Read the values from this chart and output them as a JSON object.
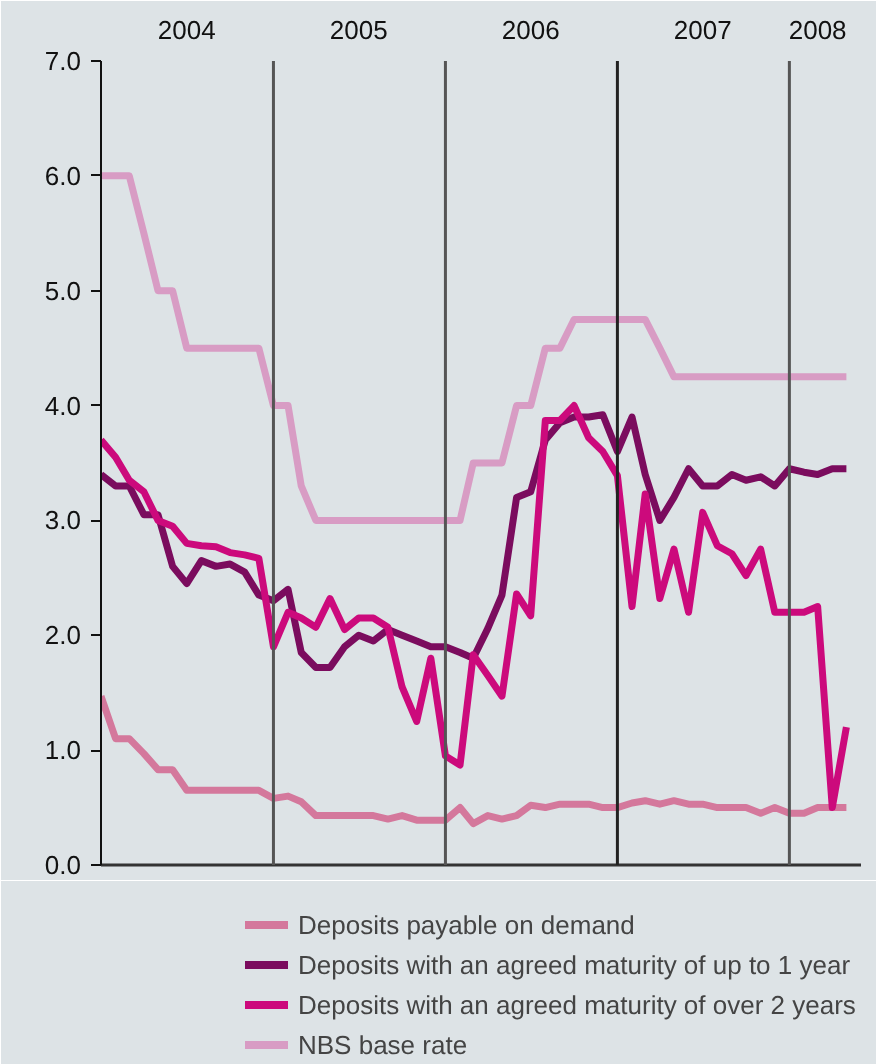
{
  "chart_data": {
    "type": "line",
    "x": [
      "2004-01",
      "2004-02",
      "2004-03",
      "2004-04",
      "2004-05",
      "2004-06",
      "2004-07",
      "2004-08",
      "2004-09",
      "2004-10",
      "2004-11",
      "2004-12",
      "2005-01",
      "2005-02",
      "2005-03",
      "2005-04",
      "2005-05",
      "2005-06",
      "2005-07",
      "2005-08",
      "2005-09",
      "2005-10",
      "2005-11",
      "2005-12",
      "2006-01",
      "2006-02",
      "2006-03",
      "2006-04",
      "2006-05",
      "2006-06",
      "2006-07",
      "2006-08",
      "2006-09",
      "2006-10",
      "2006-11",
      "2006-12",
      "2007-01",
      "2007-02",
      "2007-03",
      "2007-04",
      "2007-05",
      "2007-06",
      "2007-07",
      "2007-08",
      "2007-09",
      "2007-10",
      "2007-11",
      "2007-12",
      "2008-01",
      "2008-02",
      "2008-03",
      "2008-04",
      "2008-05"
    ],
    "series": [
      {
        "name": "Deposits payable on demand",
        "color": "#d4789c",
        "values": [
          1.47,
          1.1,
          1.1,
          0.97,
          0.83,
          0.83,
          0.65,
          0.65,
          0.65,
          0.65,
          0.65,
          0.65,
          0.58,
          0.6,
          0.55,
          0.43,
          0.43,
          0.43,
          0.43,
          0.43,
          0.4,
          0.43,
          0.39,
          0.39,
          0.39,
          0.5,
          0.36,
          0.43,
          0.4,
          0.43,
          0.52,
          0.5,
          0.53,
          0.53,
          0.53,
          0.5,
          0.5,
          0.54,
          0.56,
          0.53,
          0.56,
          0.53,
          0.53,
          0.5,
          0.5,
          0.5,
          0.45,
          0.5,
          0.45,
          0.45,
          0.5,
          0.5,
          0.5
        ]
      },
      {
        "name": "Deposits with an agreed maturity of up to 1 year",
        "color": "#7b0c5e",
        "values": [
          3.4,
          3.3,
          3.3,
          3.05,
          3.05,
          2.6,
          2.45,
          2.65,
          2.6,
          2.62,
          2.55,
          2.35,
          2.3,
          2.4,
          1.85,
          1.72,
          1.72,
          1.9,
          2.0,
          1.95,
          2.05,
          2.0,
          1.95,
          1.9,
          1.9,
          1.85,
          1.8,
          2.06,
          2.35,
          3.2,
          3.25,
          3.7,
          3.85,
          3.9,
          3.9,
          3.92,
          3.6,
          3.9,
          3.4,
          3.0,
          3.2,
          3.45,
          3.3,
          3.3,
          3.4,
          3.35,
          3.38,
          3.3,
          3.45,
          3.42,
          3.4,
          3.45,
          3.45
        ]
      },
      {
        "name": "Deposits with an agreed maturity of over 2 years",
        "color": "#cc0a7c",
        "values": [
          3.7,
          3.55,
          3.35,
          3.25,
          3.0,
          2.95,
          2.8,
          2.78,
          2.77,
          2.72,
          2.7,
          2.67,
          1.9,
          2.2,
          2.15,
          2.07,
          2.32,
          2.05,
          2.15,
          2.15,
          2.07,
          1.55,
          1.25,
          1.8,
          0.95,
          0.87,
          1.83,
          1.65,
          1.47,
          2.36,
          2.17,
          3.87,
          3.87,
          4.0,
          3.72,
          3.6,
          3.39,
          2.25,
          3.23,
          2.32,
          2.75,
          2.2,
          3.07,
          2.78,
          2.71,
          2.52,
          2.75,
          2.2,
          2.2,
          2.2,
          2.25,
          0.5,
          1.2
        ]
      },
      {
        "name": "NBS base rate",
        "color": "#d89cc4",
        "values": [
          6.0,
          6.0,
          6.0,
          5.5,
          5.0,
          5.0,
          4.5,
          4.5,
          4.5,
          4.5,
          4.5,
          4.5,
          4.0,
          4.0,
          3.3,
          3.0,
          3.0,
          3.0,
          3.0,
          3.0,
          3.0,
          3.0,
          3.0,
          3.0,
          3.0,
          3.0,
          3.5,
          3.5,
          3.5,
          4.0,
          4.0,
          4.5,
          4.5,
          4.75,
          4.75,
          4.75,
          4.75,
          4.75,
          4.75,
          4.5,
          4.25,
          4.25,
          4.25,
          4.25,
          4.25,
          4.25,
          4.25,
          4.25,
          4.25,
          4.25,
          4.25,
          4.25,
          4.25
        ]
      }
    ],
    "xlim": [
      "2004-01",
      "2008-06"
    ],
    "xticks": [
      {
        "value": "2004-07",
        "label": "2004"
      },
      {
        "value": "2005-07",
        "label": "2005"
      },
      {
        "value": "2006-07",
        "label": "2006"
      },
      {
        "value": "2007-07",
        "label": "2007"
      },
      {
        "value": "2008-03",
        "label": "2008"
      }
    ],
    "ylim": [
      0,
      7
    ],
    "yticks": [
      {
        "value": 0,
        "label": "0.0"
      },
      {
        "value": 1,
        "label": "1.0"
      },
      {
        "value": 2,
        "label": "2.0"
      },
      {
        "value": 3,
        "label": "3.0"
      },
      {
        "value": 4,
        "label": "4.0"
      },
      {
        "value": 5,
        "label": "5.0"
      },
      {
        "value": 6,
        "label": "6.0"
      },
      {
        "value": 7,
        "label": "7.0"
      }
    ],
    "ref_lines": [
      {
        "axis": "x",
        "value": "2005-01",
        "color": "#555555"
      },
      {
        "axis": "x",
        "value": "2006-01",
        "color": "#555555"
      },
      {
        "axis": "x",
        "value": "2007-01",
        "color": "#222222"
      },
      {
        "axis": "x",
        "value": "2008-01",
        "color": "#555555"
      }
    ],
    "grid": false,
    "legend": "bottom",
    "marker": "none",
    "line_style": "solid"
  }
}
